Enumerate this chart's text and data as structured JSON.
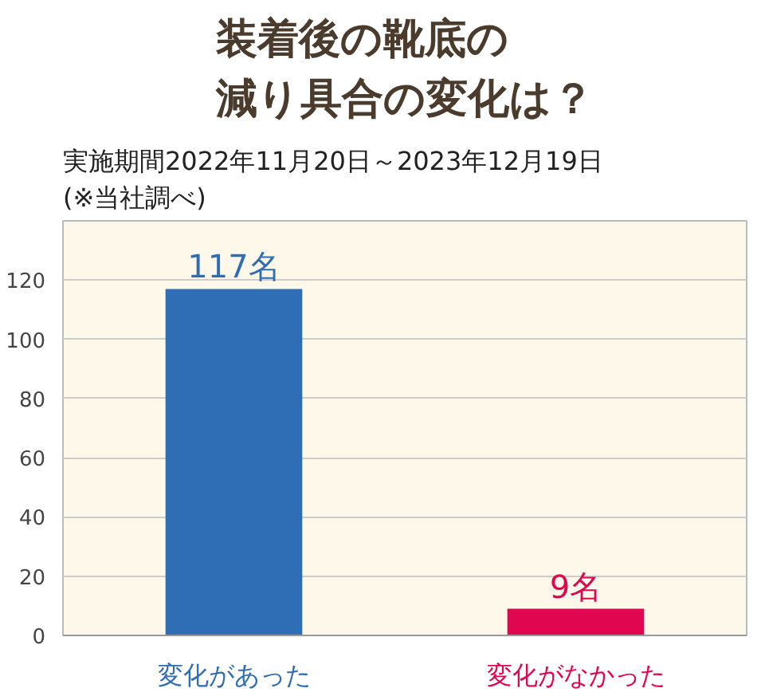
{
  "chart_data": {
    "type": "bar",
    "title": "装着後の靴底の減り具合の変化は？",
    "subtitle": "実施期間2022年11月20日～2023年12月19日\n(※当社調べ)",
    "categories": [
      "変化があった",
      "変化がなかった"
    ],
    "values": [
      117,
      9
    ],
    "colors": [
      "#2f6db5",
      "#e0064f"
    ],
    "value_labels": [
      "117名",
      "9名"
    ],
    "ylim": [
      0,
      140
    ],
    "yticks": [
      0,
      20,
      40,
      60,
      80,
      100,
      120
    ],
    "grid": "y"
  }
}
